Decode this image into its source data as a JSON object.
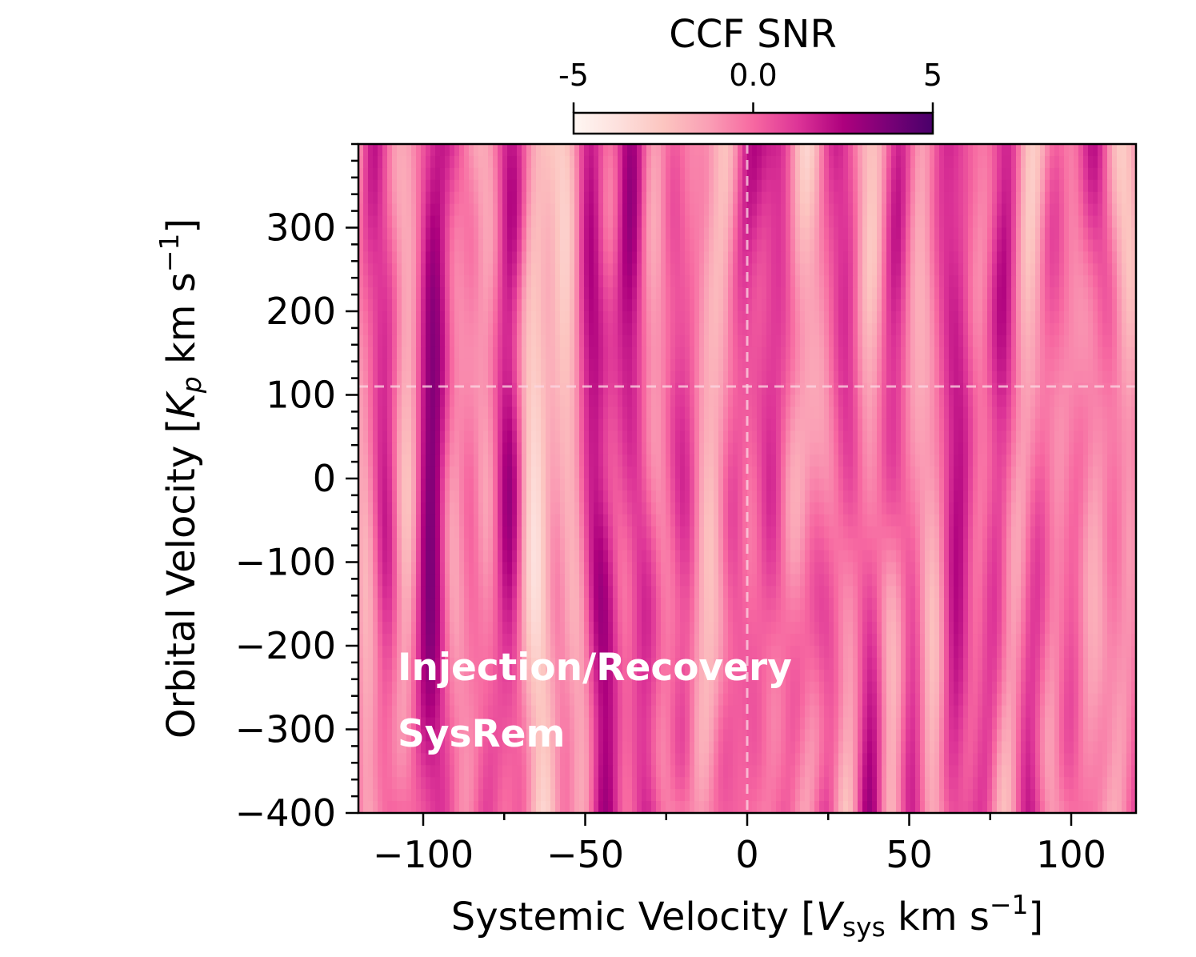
{
  "chart_data": {
    "type": "heatmap",
    "title": "",
    "xlabel": "Systemic Velocity [V_sys km s^-1]",
    "xlabel_parts": {
      "pre": "Systemic Velocity [",
      "var": "V",
      "sub": "sys",
      "units": " km s",
      "sup": "−1",
      "post": "]"
    },
    "ylabel": "Orbital Velocity [K_p km s^-1]",
    "ylabel_parts": {
      "pre": "Orbital Velocity [",
      "var": "K",
      "sub": "p",
      "units": " km s",
      "sup": "−1",
      "post": "]"
    },
    "xlim": [
      -120,
      120
    ],
    "ylim": [
      -400,
      400
    ],
    "xticks": [
      {
        "value": -100,
        "label": "−100"
      },
      {
        "value": -50,
        "label": "−50"
      },
      {
        "value": 0,
        "label": "0"
      },
      {
        "value": 50,
        "label": "50"
      },
      {
        "value": 100,
        "label": "100"
      }
    ],
    "yticks": [
      {
        "value": 300,
        "label": "300"
      },
      {
        "value": 200,
        "label": "200"
      },
      {
        "value": 100,
        "label": "100"
      },
      {
        "value": 0,
        "label": "0"
      },
      {
        "value": -100,
        "label": "−100"
      },
      {
        "value": -200,
        "label": "−200"
      },
      {
        "value": -300,
        "label": "−300"
      },
      {
        "value": -400,
        "label": "−400"
      }
    ],
    "x_minor_step": 25,
    "y_minor_step": 20,
    "colorbar": {
      "label": "CCF SNR",
      "range": [
        -5,
        5
      ],
      "ticks": [
        {
          "value": -5,
          "label": "-5"
        },
        {
          "value": 0,
          "label": "0.0"
        },
        {
          "value": 5,
          "label": "5"
        }
      ],
      "colormap": "RdPu",
      "stops": [
        "#fff7f3",
        "#fde0dd",
        "#fcc5c0",
        "#fa9fb5",
        "#f768a1",
        "#dd3497",
        "#ae017e",
        "#7a0177",
        "#49006a"
      ]
    },
    "reference_lines": [
      {
        "axis": "x",
        "value": 0,
        "style": "dashed"
      },
      {
        "axis": "y",
        "value": 110,
        "style": "dashed"
      }
    ],
    "annotations": [
      "Injection/Recovery",
      "SysRem"
    ],
    "snr_min": -5,
    "snr_max": 5,
    "description": "CCF SNR map with no significant detection; vertical streaks of alternating positive and negative signal between about -5 and 5 across all velocities."
  }
}
